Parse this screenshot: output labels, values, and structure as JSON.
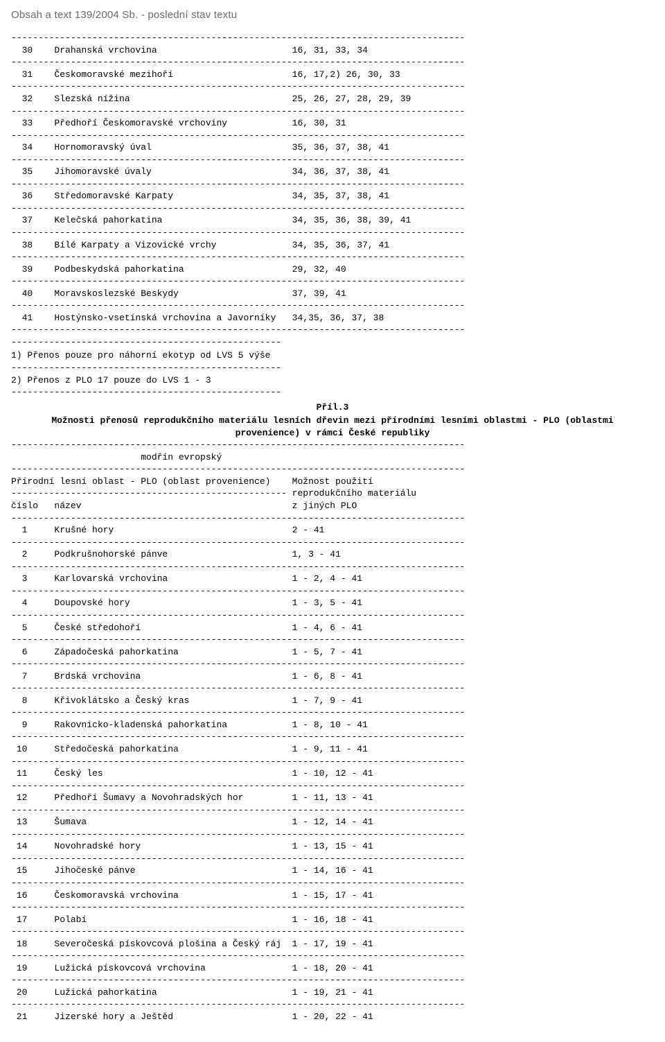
{
  "page": {
    "title": "Obsah a text 139/2004 Sb. - poslední stav textu"
  },
  "divider84": "------------------------------------------------------------------------------------",
  "divider78": "------------------------------------------------------------------------------------",
  "divider51": "---------------------------------------------------",
  "divider50": "--------------------------------------------------",
  "table1": {
    "col_num": 2,
    "col_name": 8,
    "col_val": 52,
    "rows": [
      {
        "n": "30",
        "name": "Drahanská vrchovina",
        "v": "16, 31, 33, 34"
      },
      {
        "n": "31",
        "name": "Českomoravské mezihoří",
        "v": "16, 17,2) 26, 30, 33"
      },
      {
        "n": "32",
        "name": "Slezská nížina",
        "v": "25, 26, 27, 28, 29, 39"
      },
      {
        "n": "33",
        "name": "Předhoří Českomoravské vrchoviny",
        "v": "16, 30, 31"
      },
      {
        "n": "34",
        "name": "Hornomoravský úval",
        "v": "35, 36, 37, 38, 41"
      },
      {
        "n": "35",
        "name": "Jihomoravské úvaly",
        "v": "34, 36, 37, 38, 41"
      },
      {
        "n": "36",
        "name": "Středomoravské Karpaty",
        "v": "34, 35, 37, 38, 41"
      },
      {
        "n": "37",
        "name": "Kelečská pahorkatina",
        "v": "34, 35, 36, 38, 39, 41"
      },
      {
        "n": "38",
        "name": "Bílé Karpaty a Vizovické vrchy",
        "v": "34, 35, 36, 37, 41"
      },
      {
        "n": "39",
        "name": "Podbeskydská pahorkatina",
        "v": "29, 32, 40"
      },
      {
        "n": "40",
        "name": "Moravskoslezské Beskydy",
        "v": "37, 39, 41"
      },
      {
        "n": "41",
        "name": "Hostýnsko-vsetínská vrchovina a Javorníky",
        "v": "34,35, 36, 37, 38"
      }
    ]
  },
  "notes": {
    "n1": "1) Přenos pouze pro náhorní ekotyp od LVS 5 výše",
    "n2": "2) Přenos z PLO 17 pouze do LVS 1 - 3"
  },
  "section2": {
    "heading": "Příl.3",
    "title": "Možnosti přenosů reprodukčního materiálu lesních dřevin mezi přírodními lesními oblastmi - PLO (oblastmi provenience) v rámci České republiky",
    "species_indent": 24,
    "species": "modřín evropský",
    "header": {
      "l1a": "Přírodní lesní oblast - PLO (oblast provenience)",
      "l1b": "Možnost použití",
      "l2b": "reprodukčního materiálu",
      "l3a": "číslo",
      "l3a2": "název",
      "l3b": "z jiných PLO"
    }
  },
  "table2": {
    "col_num": 1,
    "col_name": 8,
    "col_val": 52,
    "rows": [
      {
        "n": " 1",
        "name": "Krušné hory",
        "v": "2 - 41"
      },
      {
        "n": " 2",
        "name": "Podkrušnohorské pánve",
        "v": "1, 3 - 41"
      },
      {
        "n": " 3",
        "name": "Karlovarská vrchovina",
        "v": "1 - 2, 4 - 41"
      },
      {
        "n": " 4",
        "name": "Doupovské hory",
        "v": "1 - 3, 5 - 41"
      },
      {
        "n": " 5",
        "name": "České středohoří",
        "v": "1 - 4, 6 - 41"
      },
      {
        "n": " 6",
        "name": "Západočeská pahorkatina",
        "v": "1 - 5, 7 - 41"
      },
      {
        "n": " 7",
        "name": "Brdská vrchovina",
        "v": "1 - 6, 8 - 41"
      },
      {
        "n": " 8",
        "name": "Křivoklátsko a Český kras",
        "v": "1 - 7, 9 - 41"
      },
      {
        "n": " 9",
        "name": "Rakovnicko-kladenská pahorkatina",
        "v": "1 - 8, 10 - 41"
      },
      {
        "n": "10",
        "name": "Středočeská pahorkatina",
        "v": "1 - 9, 11 - 41"
      },
      {
        "n": "11",
        "name": "Český les",
        "v": "1 - 10, 12 - 41"
      },
      {
        "n": "12",
        "name": "Předhoří Šumavy a Novohradských hor",
        "v": "1 - 11, 13 - 41"
      },
      {
        "n": "13",
        "name": "Šumava",
        "v": "1 - 12, 14 - 41"
      },
      {
        "n": "14",
        "name": "Novohradské hory",
        "v": "1 - 13, 15 - 41"
      },
      {
        "n": "15",
        "name": "Jihočeské pánve",
        "v": "1 - 14, 16 - 41"
      },
      {
        "n": "16",
        "name": "Českomoravská vrchovina",
        "v": "1 - 15, 17 - 41"
      },
      {
        "n": "17",
        "name": "Polabí",
        "v": "1 - 16, 18 - 41"
      },
      {
        "n": "18",
        "name": "Severočeská pískovcová plošina a Český ráj",
        "v": "1 - 17, 19 - 41"
      },
      {
        "n": "19",
        "name": "Lužická pískovcová vrchovina",
        "v": "1 - 18, 20 - 41"
      },
      {
        "n": "20",
        "name": "Lužická pahorkatina",
        "v": "1 - 19, 21 - 41"
      },
      {
        "n": "21",
        "name": "Jizerské hory a Ještěd",
        "v": "1 - 20, 22 - 41"
      }
    ]
  }
}
